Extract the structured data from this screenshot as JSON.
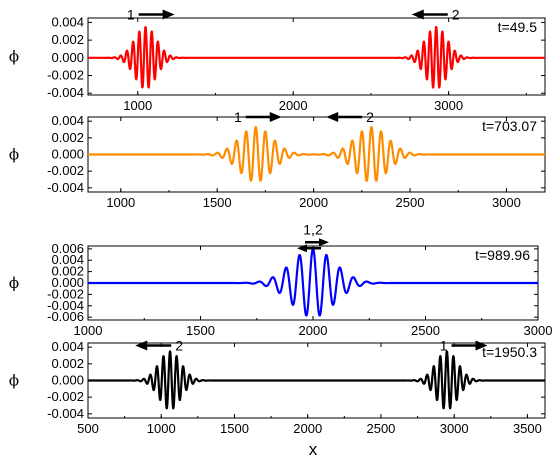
{
  "figure": {
    "shared_xlabel": "x"
  },
  "chart_data": [
    {
      "type": "line",
      "ylabel": "ϕ",
      "xlabel": "",
      "time_label": "t=49.5",
      "color": "#ff0000",
      "xlim": [
        680,
        3620
      ],
      "ylim": [
        -0.0042,
        0.0045
      ],
      "x_ticks": [
        1000,
        2000,
        3000
      ],
      "x_tick_labels": [
        "1000",
        "2000",
        "3000"
      ],
      "y_ticks": [
        -0.004,
        -0.002,
        0.0,
        0.002,
        0.004
      ],
      "y_tick_labels": [
        "-0.004",
        "-0.002",
        "0.000",
        "0.002",
        "0.004"
      ],
      "series": [
        {
          "x_range": [
            680,
            3620
          ],
          "baseline": 0.0,
          "packets": [
            {
              "center": 1050,
              "amplitude": 0.0035,
              "sigma": 70,
              "wavelength": 40
            },
            {
              "center": 2920,
              "amplitude": 0.0035,
              "sigma": 70,
              "wavelength": 40
            }
          ]
        }
      ],
      "annotations": [
        {
          "label": "1",
          "arrow": "right",
          "x": 1070,
          "y": 0.0049
        },
        {
          "label": "2",
          "arrow": "left",
          "x": 2930,
          "y": 0.0049
        }
      ]
    },
    {
      "type": "line",
      "ylabel": "ϕ",
      "xlabel": "",
      "time_label": "t=703.07",
      "color": "#ff8c00",
      "xlim": [
        830,
        3200
      ],
      "ylim": [
        -0.0045,
        0.0045
      ],
      "x_ticks": [
        1000,
        1500,
        2000,
        2500,
        3000
      ],
      "x_tick_labels": [
        "1000",
        "1500",
        "2000",
        "2500",
        "3000"
      ],
      "y_ticks": [
        -0.004,
        -0.002,
        0.0,
        0.002,
        0.004
      ],
      "y_tick_labels": [
        "-0.004",
        "-0.002",
        "0.000",
        "0.002",
        "0.004"
      ],
      "series": [
        {
          "x_range": [
            830,
            3200
          ],
          "baseline": 0.0,
          "packets": [
            {
              "center": 1700,
              "amplitude": 0.0033,
              "sigma": 85,
              "wavelength": 50
            },
            {
              "center": 2300,
              "amplitude": 0.0033,
              "sigma": 85,
              "wavelength": 50
            }
          ]
        }
      ],
      "annotations": [
        {
          "label": "1",
          "arrow": "right",
          "x": 1700,
          "y": 0.0045
        },
        {
          "label": "2",
          "arrow": "left",
          "x": 2200,
          "y": 0.0045
        }
      ]
    },
    {
      "type": "line",
      "ylabel": "ϕ",
      "xlabel": "",
      "time_label": "t=989.96",
      "color": "#0000ff",
      "xlim": [
        1000,
        3000
      ],
      "ylim": [
        -0.0065,
        0.0065
      ],
      "x_ticks": [
        1000,
        1500,
        2000,
        2500,
        3000
      ],
      "x_tick_labels": [
        "1000",
        "1500",
        "2000",
        "2500",
        "3000"
      ],
      "y_ticks": [
        -0.006,
        -0.004,
        -0.002,
        0.0,
        0.002,
        0.004,
        0.006
      ],
      "y_tick_labels": [
        "-0.006",
        "-0.004",
        "-0.002",
        "0.000",
        "0.002",
        "0.004",
        "0.006"
      ],
      "series": [
        {
          "x_range": [
            1000,
            3000
          ],
          "baseline": 0.0,
          "packets": [
            {
              "center": 2000,
              "amplitude": 0.006,
              "sigma": 95,
              "wavelength": 60
            }
          ]
        }
      ],
      "annotations": [
        {
          "label": "1,2",
          "arrow": "both",
          "x": 2000,
          "y": 0.0075
        }
      ]
    },
    {
      "type": "line",
      "ylabel": "ϕ",
      "xlabel": "x",
      "time_label": "t=1950.3",
      "color": "#000000",
      "xlim": [
        500,
        3620
      ],
      "ylim": [
        -0.0045,
        0.0045
      ],
      "x_ticks": [
        500,
        1000,
        1500,
        2000,
        2500,
        3000,
        3500
      ],
      "x_tick_labels": [
        "500",
        "1000",
        "1500",
        "2000",
        "2500",
        "3000",
        "3500"
      ],
      "y_ticks": [
        -0.004,
        -0.002,
        0.0,
        0.002,
        0.004
      ],
      "y_tick_labels": [
        "-0.004",
        "-0.002",
        "0.000",
        "0.002",
        "0.004"
      ],
      "series": [
        {
          "x_range": [
            500,
            3620
          ],
          "baseline": 0.0,
          "packets": [
            {
              "center": 1060,
              "amplitude": 0.0035,
              "sigma": 75,
              "wavelength": 45
            },
            {
              "center": 2950,
              "amplitude": 0.0035,
              "sigma": 75,
              "wavelength": 45
            }
          ]
        }
      ],
      "annotations": [
        {
          "label": "2",
          "arrow": "left",
          "x": 1000,
          "y": 0.0042
        },
        {
          "label": "1",
          "arrow": "right",
          "x": 3050,
          "y": 0.0042
        }
      ]
    }
  ]
}
